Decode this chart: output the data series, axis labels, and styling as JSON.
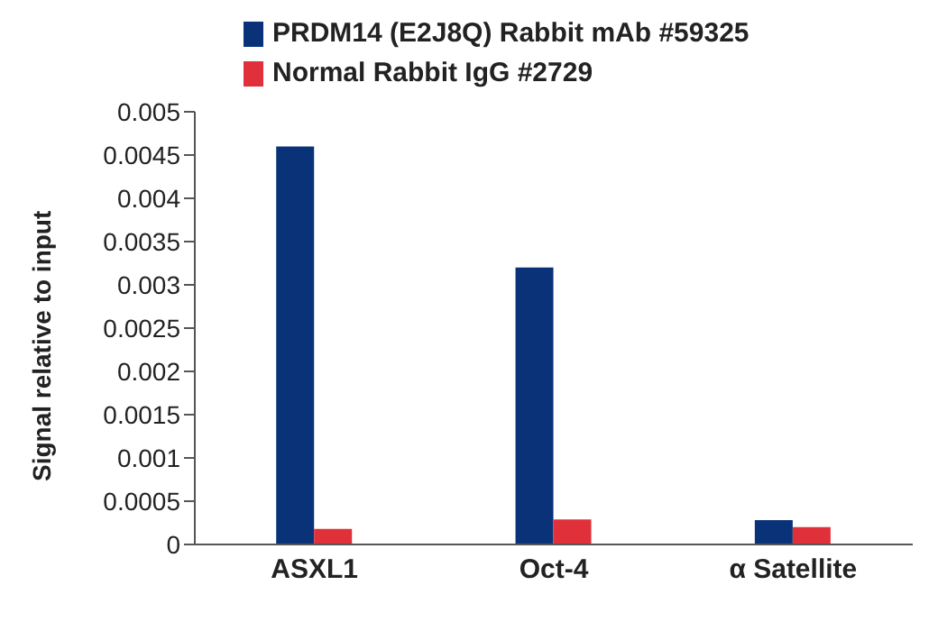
{
  "chart_data": {
    "type": "bar",
    "ylabel": "Signal relative to input",
    "categories": [
      "ASXL1",
      "Oct-4",
      "α Satellite"
    ],
    "series": [
      {
        "name": "PRDM14 (E2J8Q) Rabbit mAb #59325",
        "color": "#0a3278",
        "values": [
          0.0046,
          0.0032,
          0.00028
        ]
      },
      {
        "name": "Normal Rabbit IgG #2729",
        "color": "#e0303a",
        "values": [
          0.00018,
          0.00029,
          0.0002
        ]
      }
    ],
    "ylim": [
      0,
      0.005
    ],
    "yticks": [
      0,
      0.0005,
      0.001,
      0.0015,
      0.002,
      0.0025,
      0.003,
      0.0035,
      0.004,
      0.0045,
      0.005
    ],
    "legend": "top"
  }
}
